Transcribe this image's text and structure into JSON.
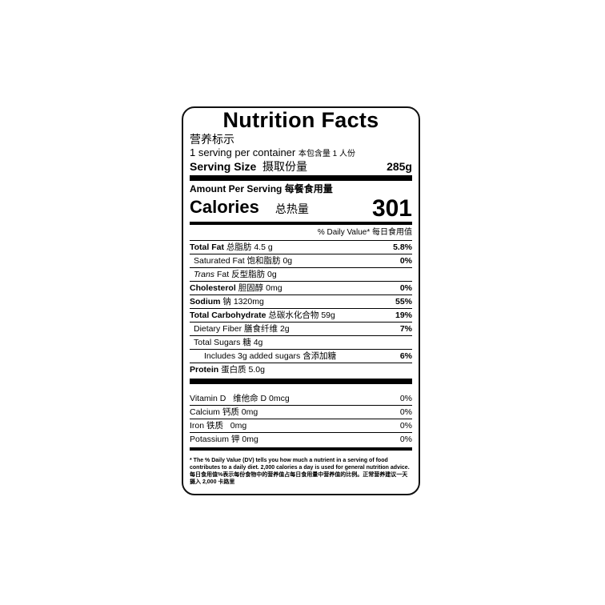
{
  "title": "Nutrition Facts",
  "title_cn": "营养标示",
  "servings": "1 serving per container",
  "servings_cn": "本包含量 1 人份",
  "serving_size_label": "Serving Size",
  "serving_size_cn": "摄取份量",
  "serving_size_value": "285g",
  "amount_per_serving": "Amount Per Serving 每餐食用量",
  "calories_label": "Calories",
  "calories_cn": "总热量",
  "calories_value": "301",
  "dv_header": "% Daily Value* 每日食用值",
  "nutrients": [
    {
      "en": "Total Fat",
      "rest": "总脂肪 4.5 g",
      "dv": "5.8%"
    },
    {
      "en": "Saturated Fat",
      "rest": "饱和脂肪 0g",
      "dv": "0%"
    },
    {
      "en": "Trans",
      "en2": " Fat",
      "rest": "反型脂肪 0g",
      "dv": ""
    },
    {
      "en": "Cholesterol",
      "rest": "胆固醇 0mg",
      "dv": "0%"
    },
    {
      "en": "Sodium",
      "rest": "钠 1320mg",
      "dv": "55%"
    },
    {
      "en": "Total Carbohydrate",
      "rest": "总碳水化合物 59g",
      "dv": "19%"
    },
    {
      "en": "Dietary Fiber",
      "rest": "膳食纤维 2g",
      "dv": "7%"
    },
    {
      "en": "Total Sugars",
      "rest": "糖 4g",
      "dv": ""
    },
    {
      "en": "Includes 3g added sugars",
      "rest": "含添加糖",
      "dv": "6%"
    },
    {
      "en": "Protein",
      "rest": "蛋白质 5.0g",
      "dv": ""
    }
  ],
  "vitamins": [
    {
      "name": "Vitamin D   维他命 D 0mcg",
      "dv": "0%"
    },
    {
      "name": "Calcium 钙质 0mg",
      "dv": "0%"
    },
    {
      "name": "Iron 铁质   0mg",
      "dv": "0%"
    },
    {
      "name": "Potassium 钾 0mg",
      "dv": "0%"
    }
  ],
  "footnote_en": "* The % Daily Value (DV) tells you how much a nutrient in a serving of food contributes to a daily diet. 2,000 calories a day is used for general nutrition advice.",
  "footnote_cn": "每日食用值%表示每份食物中的营养值占每日食用量中营养值的比例。正常营养建议一天摄入 2,000 卡路里"
}
